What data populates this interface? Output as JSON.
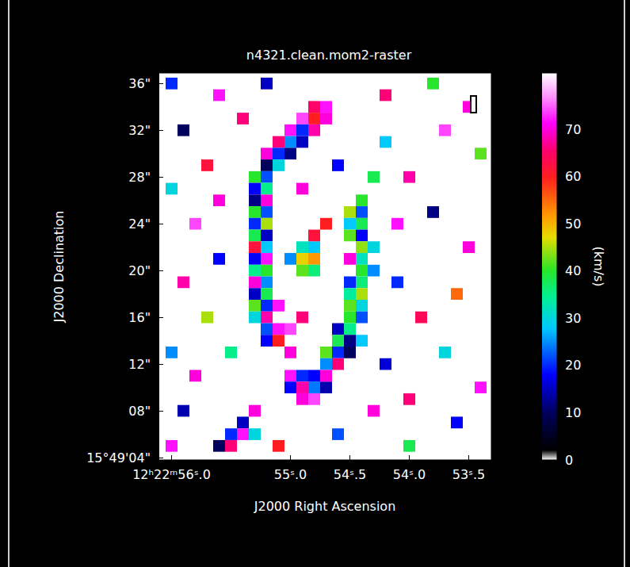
{
  "chart_data": {
    "type": "heatmap",
    "title": "n4321.clean.mom2-raster",
    "x_label": "J2000 Right Ascension",
    "y_label": "J2000 Declination",
    "xlim": [
      56.11,
      53.31
    ],
    "ylim": [
      3.8,
      36.9
    ],
    "xticks": [
      {
        "value": 56.0,
        "label": "12ʰ22ᵐ56ˢ.0"
      },
      {
        "value": 55.0,
        "label": "55ˢ.0"
      },
      {
        "value": 54.5,
        "label": "54ˢ.5"
      },
      {
        "value": 54.0,
        "label": "54ˢ.0"
      },
      {
        "value": 53.5,
        "label": "53ˢ.5"
      }
    ],
    "yticks": [
      {
        "value": 4,
        "label": "15°49'04\""
      },
      {
        "value": 8,
        "label": "08\""
      },
      {
        "value": 12,
        "label": "12\""
      },
      {
        "value": 16,
        "label": "16\""
      },
      {
        "value": 20,
        "label": "20\""
      },
      {
        "value": 24,
        "label": "24\""
      },
      {
        "value": 28,
        "label": "28\""
      },
      {
        "value": 32,
        "label": "32\""
      },
      {
        "value": 36,
        "label": "36\""
      }
    ],
    "grid": false,
    "colorbar": {
      "label": "(km/s)",
      "range": [
        0,
        82
      ],
      "ticks": [
        0,
        10,
        20,
        30,
        40,
        50,
        60,
        70
      ]
    },
    "cells": [
      [
        54.7,
        34,
        72
      ],
      [
        54.8,
        34,
        65
      ],
      [
        54.7,
        33,
        70
      ],
      [
        54.8,
        33,
        60
      ],
      [
        54.9,
        33,
        74
      ],
      [
        54.8,
        32,
        68
      ],
      [
        54.9,
        32,
        20
      ],
      [
        55.0,
        32,
        72
      ],
      [
        54.9,
        31,
        15
      ],
      [
        55.0,
        31,
        25
      ],
      [
        55.1,
        31,
        66
      ],
      [
        55.0,
        30,
        12
      ],
      [
        55.1,
        30,
        20
      ],
      [
        55.2,
        30,
        70
      ],
      [
        55.1,
        29,
        30
      ],
      [
        55.2,
        29,
        10
      ],
      [
        55.2,
        28,
        22
      ],
      [
        55.3,
        28,
        40
      ],
      [
        55.2,
        27,
        35
      ],
      [
        55.3,
        27,
        18
      ],
      [
        55.3,
        26,
        12
      ],
      [
        55.2,
        26,
        70
      ],
      [
        55.3,
        25,
        40
      ],
      [
        55.2,
        25,
        22
      ],
      [
        55.3,
        24,
        20
      ],
      [
        55.2,
        24,
        45
      ],
      [
        55.3,
        23,
        38
      ],
      [
        55.2,
        23,
        15
      ],
      [
        55.3,
        22,
        62
      ],
      [
        55.2,
        22,
        28
      ],
      [
        55.3,
        21,
        18
      ],
      [
        55.2,
        21,
        72
      ],
      [
        55.3,
        20,
        35
      ],
      [
        55.2,
        20,
        40
      ],
      [
        55.3,
        19,
        70
      ],
      [
        55.2,
        19,
        25
      ],
      [
        55.3,
        18,
        15
      ],
      [
        55.2,
        18,
        38
      ],
      [
        55.3,
        17,
        42
      ],
      [
        55.2,
        17,
        20
      ],
      [
        55.2,
        16,
        68
      ],
      [
        55.3,
        16,
        30
      ],
      [
        55.2,
        15,
        22
      ],
      [
        55.1,
        15,
        72
      ],
      [
        55.1,
        14,
        60
      ],
      [
        55.2,
        14,
        18
      ],
      [
        55.0,
        13,
        70
      ],
      [
        55.0,
        11,
        72
      ],
      [
        54.9,
        11,
        20
      ],
      [
        55.0,
        10,
        18
      ],
      [
        54.9,
        10,
        68
      ],
      [
        54.8,
        10,
        24
      ],
      [
        54.7,
        10,
        14
      ],
      [
        54.9,
        9,
        70
      ],
      [
        54.8,
        9,
        74
      ],
      [
        55.3,
        8,
        70
      ],
      [
        55.4,
        7,
        15
      ],
      [
        55.5,
        6,
        20
      ],
      [
        55.4,
        6,
        72
      ],
      [
        55.6,
        5,
        10
      ],
      [
        55.5,
        5,
        66
      ],
      [
        55.3,
        6,
        30
      ],
      [
        54.4,
        26,
        40
      ],
      [
        54.4,
        25,
        22
      ],
      [
        54.5,
        25,
        45
      ],
      [
        54.4,
        24,
        38
      ],
      [
        54.5,
        24,
        28
      ],
      [
        54.4,
        23,
        18
      ],
      [
        54.5,
        23,
        42
      ],
      [
        54.4,
        22,
        44
      ],
      [
        54.3,
        22,
        30
      ],
      [
        54.4,
        21,
        32
      ],
      [
        54.5,
        21,
        70
      ],
      [
        54.4,
        20,
        40
      ],
      [
        54.3,
        20,
        25
      ],
      [
        54.4,
        19,
        36
      ],
      [
        54.5,
        19,
        20
      ],
      [
        54.4,
        18,
        45
      ],
      [
        54.5,
        18,
        34
      ],
      [
        54.4,
        17,
        30
      ],
      [
        54.5,
        17,
        42
      ],
      [
        54.4,
        16,
        22
      ],
      [
        54.5,
        16,
        40
      ],
      [
        54.5,
        15,
        35
      ],
      [
        54.6,
        15,
        15
      ],
      [
        54.5,
        14,
        12
      ],
      [
        54.6,
        14,
        38
      ],
      [
        54.4,
        14,
        28
      ],
      [
        54.6,
        13,
        20
      ],
      [
        54.7,
        13,
        42
      ],
      [
        54.5,
        13,
        10
      ],
      [
        54.6,
        12,
        66
      ],
      [
        54.7,
        12,
        25
      ],
      [
        54.7,
        11,
        70
      ],
      [
        54.8,
        11,
        18
      ],
      [
        54.9,
        22,
        32
      ],
      [
        54.8,
        22,
        28
      ],
      [
        54.9,
        21,
        48
      ],
      [
        54.8,
        21,
        52
      ],
      [
        54.9,
        20,
        42
      ],
      [
        54.8,
        20,
        36
      ],
      [
        55.0,
        21,
        25
      ],
      [
        54.8,
        23,
        62
      ],
      [
        55.1,
        17,
        72
      ],
      [
        54.9,
        16,
        66
      ],
      [
        55.0,
        15,
        74
      ],
      [
        54.7,
        24,
        60
      ],
      [
        56.0,
        36,
        20
      ],
      [
        55.6,
        35,
        72
      ],
      [
        55.2,
        36,
        15
      ],
      [
        54.2,
        35,
        66
      ],
      [
        53.8,
        36,
        40
      ],
      [
        53.5,
        34,
        70
      ],
      [
        55.9,
        32,
        10
      ],
      [
        55.7,
        29,
        62
      ],
      [
        56.0,
        27,
        30
      ],
      [
        55.8,
        24,
        74
      ],
      [
        55.6,
        21,
        18
      ],
      [
        55.9,
        19,
        68
      ],
      [
        55.7,
        16,
        45
      ],
      [
        56.0,
        13,
        25
      ],
      [
        55.8,
        11,
        70
      ],
      [
        55.9,
        8,
        14
      ],
      [
        56.0,
        5,
        72
      ],
      [
        55.1,
        5,
        60
      ],
      [
        54.6,
        6,
        22
      ],
      [
        54.3,
        8,
        70
      ],
      [
        54.0,
        5,
        38
      ],
      [
        53.6,
        7,
        18
      ],
      [
        53.4,
        10,
        72
      ],
      [
        53.7,
        13,
        30
      ],
      [
        53.9,
        16,
        64
      ],
      [
        54.1,
        19,
        20
      ],
      [
        53.5,
        22,
        70
      ],
      [
        53.8,
        25,
        12
      ],
      [
        54.0,
        28,
        68
      ],
      [
        53.4,
        30,
        42
      ],
      [
        53.7,
        32,
        74
      ],
      [
        54.2,
        31,
        28
      ],
      [
        54.1,
        24,
        72
      ],
      [
        53.6,
        18,
        55
      ],
      [
        54.2,
        12,
        16
      ],
      [
        54.0,
        9,
        66
      ],
      [
        55.5,
        13,
        35
      ],
      [
        55.6,
        26,
        70
      ],
      [
        54.6,
        29,
        18
      ],
      [
        54.9,
        27,
        70
      ],
      [
        54.3,
        28,
        38
      ],
      [
        55.4,
        33,
        66
      ]
    ]
  }
}
